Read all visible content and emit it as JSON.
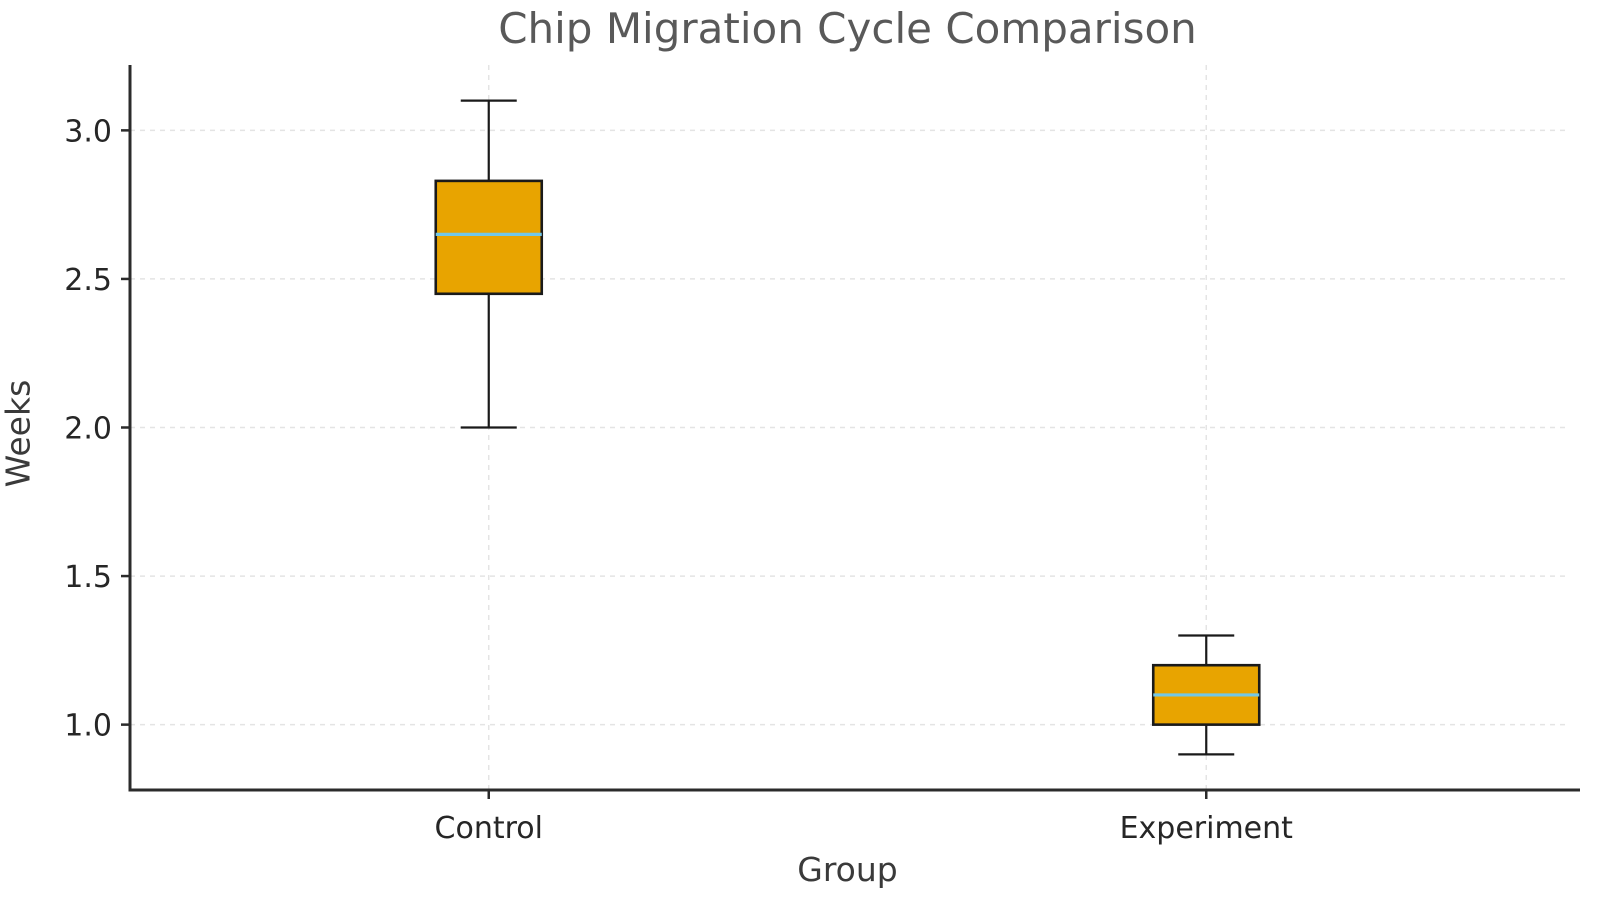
{
  "chart_data": {
    "type": "boxplot",
    "title": "Chip Migration Cycle Comparison",
    "xlabel": "Group",
    "ylabel": "Weeks",
    "categories": [
      "Control",
      "Experiment"
    ],
    "ylim": [
      0.78,
      3.22
    ],
    "yticks": [
      1.0,
      1.5,
      2.0,
      2.5,
      3.0
    ],
    "grid": "dashed, horizontal and vertical at category positions",
    "legend": "none",
    "series": [
      {
        "name": "Control",
        "whisker_low": 2.0,
        "q1": 2.45,
        "median": 2.65,
        "q3": 2.83,
        "whisker_high": 3.1
      },
      {
        "name": "Experiment",
        "whisker_low": 0.9,
        "q1": 1.0,
        "median": 1.1,
        "q3": 1.2,
        "whisker_high": 1.3
      }
    ],
    "colors": {
      "box_fill": "#E8A400",
      "box_edge": "#1a1a1a",
      "median_line": "#72C7E7",
      "grid_line": "#e4e4e4",
      "spine": "#2b2b2b",
      "title_text": "#595959",
      "tick_text": "#262626",
      "background": "#ffffff"
    }
  }
}
